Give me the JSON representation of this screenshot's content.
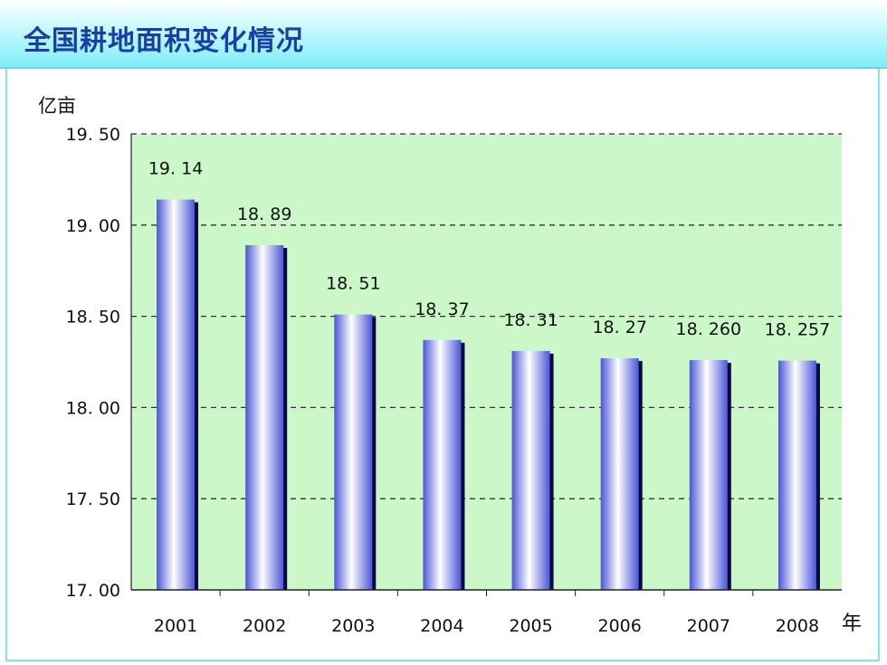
{
  "title": "全国耕地面积变化情况",
  "colors": {
    "plot_bg": "#ccf7c8",
    "bar_light": "#ffffff",
    "bar_mid": "#8f9df5",
    "bar_dark": "#4a56d6",
    "bar_shadow": "#0a0a3a",
    "grid": "#333333",
    "title": "#1b3ea6"
  },
  "chart_data": {
    "type": "bar",
    "title": "",
    "ylabel": "亿亩",
    "xlabel": "年",
    "ylim": [
      17.0,
      19.5
    ],
    "yticks": [
      "17. 00",
      "17. 50",
      "18. 00",
      "18. 50",
      "19. 00",
      "19. 50"
    ],
    "ytick_values": [
      17.0,
      17.5,
      18.0,
      18.5,
      19.0,
      19.5
    ],
    "grid": "dashed-horizontal",
    "legend": "none",
    "categories": [
      "2001",
      "2002",
      "2003",
      "2004",
      "2005",
      "2006",
      "2007",
      "2008"
    ],
    "values": [
      19.14,
      18.89,
      18.51,
      18.37,
      18.31,
      18.27,
      18.26,
      18.257
    ],
    "data_labels": [
      "19. 14",
      "18. 89",
      "18. 51",
      "18. 37",
      "18. 31",
      "18. 27",
      "18. 260",
      "18. 257"
    ]
  }
}
